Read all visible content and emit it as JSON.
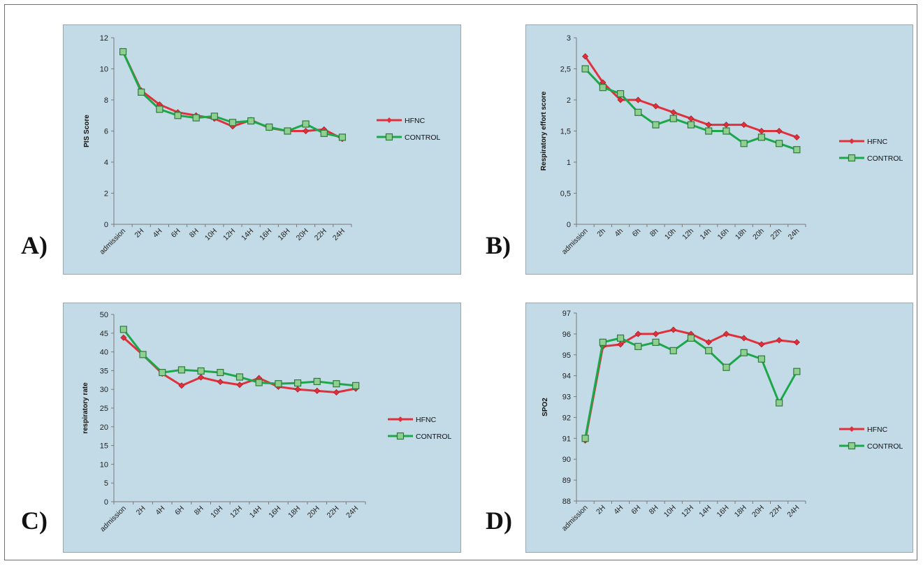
{
  "colors": {
    "hfnc": "#e0303c",
    "control": "#1aa84a",
    "control_marker": "#8fcf8f",
    "panel_bg": "#c3dbe6"
  },
  "chart_data": [
    {
      "panel": "A)",
      "type": "line",
      "title": "",
      "xlabel": "",
      "ylabel": "PIS Score",
      "ylim": [
        0,
        12
      ],
      "yticks": [
        "0",
        "2",
        "4",
        "6",
        "8",
        "10",
        "12"
      ],
      "categories": [
        "admission",
        "2H",
        "4H",
        "6H",
        "8H",
        "10H",
        "12H",
        "14H",
        "16H",
        "18H",
        "20H",
        "22H",
        "24H"
      ],
      "legend": "right",
      "series": [
        {
          "name": "HFNC",
          "values": [
            11.1,
            8.6,
            7.7,
            7.2,
            7.0,
            6.8,
            6.3,
            6.7,
            6.2,
            6.0,
            6.0,
            6.1,
            5.5
          ]
        },
        {
          "name": "CONTROL",
          "values": [
            11.1,
            8.5,
            7.4,
            7.0,
            6.85,
            6.95,
            6.55,
            6.65,
            6.25,
            6.0,
            6.45,
            5.85,
            5.6
          ]
        }
      ]
    },
    {
      "panel": "B)",
      "type": "line",
      "title": "",
      "xlabel": "",
      "ylabel": "Respiratory effort score",
      "ylim": [
        0,
        3
      ],
      "yticks": [
        "0",
        "0,5",
        "1",
        "1,5",
        "2",
        "2,5",
        "3"
      ],
      "categories": [
        "admission",
        "2h",
        "4h",
        "6h",
        "8h",
        "10h",
        "12h",
        "14h",
        "16h",
        "18h",
        "20h",
        "22h",
        "24h"
      ],
      "legend": "right",
      "series": [
        {
          "name": "HFNC",
          "values": [
            2.7,
            2.28,
            2.0,
            2.0,
            1.9,
            1.8,
            1.7,
            1.6,
            1.6,
            1.6,
            1.5,
            1.5,
            1.4
          ]
        },
        {
          "name": "CONTROL",
          "values": [
            2.5,
            2.2,
            2.1,
            1.8,
            1.6,
            1.7,
            1.6,
            1.5,
            1.5,
            1.3,
            1.4,
            1.3,
            1.2
          ]
        }
      ]
    },
    {
      "panel": "C)",
      "type": "line",
      "title": "",
      "xlabel": "",
      "ylabel": "respiratory rate",
      "ylim": [
        0,
        50
      ],
      "yticks": [
        "0",
        "5",
        "10",
        "15",
        "20",
        "25",
        "30",
        "35",
        "40",
        "45",
        "50"
      ],
      "categories": [
        "admission",
        "2H",
        "4H",
        "6H",
        "8H",
        "10H",
        "12H",
        "14H",
        "16H",
        "18H",
        "20H",
        "22H",
        "24H"
      ],
      "legend": "right",
      "series": [
        {
          "name": "HFNC",
          "values": [
            43.8,
            39.2,
            34.2,
            31.0,
            33.2,
            32.0,
            31.2,
            33.0,
            30.7,
            30.0,
            29.6,
            29.2,
            30.2
          ]
        },
        {
          "name": "CONTROL",
          "values": [
            46.0,
            39.3,
            34.5,
            35.2,
            34.9,
            34.5,
            33.3,
            31.8,
            31.5,
            31.7,
            32.1,
            31.5,
            31.0
          ]
        }
      ]
    },
    {
      "panel": "D)",
      "type": "line",
      "title": "",
      "xlabel": "",
      "ylabel": "SPO2",
      "ylim": [
        88,
        97
      ],
      "yticks": [
        "88",
        "89",
        "90",
        "91",
        "92",
        "93",
        "94",
        "95",
        "96",
        "97"
      ],
      "categories": [
        "admission",
        "2H",
        "4H",
        "6H",
        "8H",
        "10H",
        "12H",
        "14H",
        "16H",
        "18H",
        "20H",
        "22H",
        "24H"
      ],
      "legend": "right",
      "series": [
        {
          "name": "HFNC",
          "values": [
            90.9,
            95.4,
            95.5,
            96.0,
            96.0,
            96.2,
            96.0,
            95.6,
            96.0,
            95.8,
            95.5,
            95.7,
            95.6
          ]
        },
        {
          "name": "CONTROL",
          "values": [
            91.0,
            95.6,
            95.8,
            95.4,
            95.6,
            95.2,
            95.8,
            95.2,
            94.4,
            95.1,
            94.8,
            92.7,
            94.2
          ]
        }
      ]
    }
  ]
}
